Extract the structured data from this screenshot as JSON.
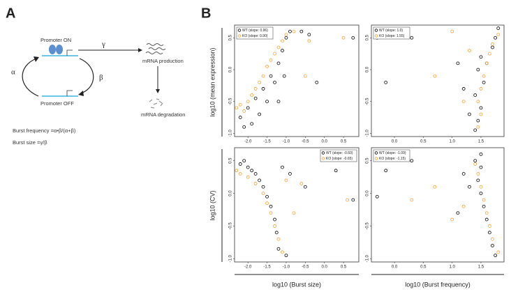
{
  "panels": {
    "a": "A",
    "b": "B"
  },
  "diagram": {
    "promoter_on": "Promoter ON",
    "gamma": "γ",
    "mrna_production": "mRNA production",
    "alpha": "α",
    "beta": "β",
    "mrna_degradation": "mRNA degradation",
    "promoter_off": "Promoter OFF",
    "burst_frequency": "Burst frequency =α•β/(α+β)",
    "burst_size": "Burst size =γ/β"
  },
  "shared_axes": {
    "y_top": "log10 (mean expression)",
    "y_bottom": "log10 (CV)",
    "x_left": "log10 (Burst size)",
    "x_right": "log10 (Burst frequency)"
  },
  "chart_data": [
    {
      "type": "scatter",
      "legend": "topleft",
      "xlim": [
        -2.35,
        0.9
      ],
      "ylim": [
        -1.05,
        0.7
      ],
      "xticks": [
        {
          "value": -2,
          "label": "-2.0"
        },
        -1.5,
        {
          "value": -1,
          "label": "-1.0"
        },
        -0.5,
        {
          "value": 0,
          "label": "0.0"
        },
        0.5
      ],
      "yticks": [
        {
          "value": -1,
          "label": "-1.0"
        },
        -0.5,
        {
          "value": 0,
          "label": "0.0"
        },
        0.5
      ],
      "series": [
        {
          "name": "WT (slope: 0.96)",
          "color": "#000000",
          "x": [
            -2.2,
            -2.1,
            -2.0,
            -1.9,
            -1.8,
            -1.7,
            -1.6,
            -1.5,
            -1.4,
            -1.3,
            -1.2,
            -1.1,
            -1.0,
            -1.05,
            -0.9,
            -0.6,
            -0.4,
            -0.2,
            0.75,
            -1.2
          ],
          "values": [
            -0.75,
            -0.9,
            -0.6,
            -0.85,
            -0.45,
            -0.7,
            -0.3,
            -0.5,
            -0.1,
            -0.2,
            0.1,
            0.3,
            0.5,
            -0.1,
            0.6,
            0.6,
            0.55,
            -0.2,
            0.5,
            -0.5
          ]
        },
        {
          "name": "KO (slope: 0.90)",
          "color": "#f7a030",
          "x": [
            -2.3,
            -2.2,
            -2.1,
            -2.0,
            -1.9,
            -1.8,
            -1.7,
            -1.6,
            -1.5,
            -1.4,
            -1.3,
            -1.2,
            -1.1,
            -1.0,
            -0.8,
            -0.4,
            -0.5,
            0.5
          ],
          "values": [
            -0.6,
            -0.55,
            -0.65,
            -0.5,
            -0.4,
            -0.3,
            -0.2,
            -0.1,
            0.05,
            0.15,
            0.25,
            0.35,
            0.45,
            0.55,
            0.6,
            0.45,
            -0.1,
            0.5
          ]
        }
      ]
    },
    {
      "type": "scatter",
      "legend": "topleft",
      "xlim": [
        -0.4,
        1.9
      ],
      "ylim": [
        -1.05,
        0.7
      ],
      "xticks": [
        {
          "value": 0,
          "label": "0.0"
        },
        0.5,
        {
          "value": 1,
          "label": "1.0"
        },
        1.5
      ],
      "yticks": [
        {
          "value": -1,
          "label": "-1.0"
        },
        -0.5,
        {
          "value": 0,
          "label": "0.0"
        },
        0.5
      ],
      "series": [
        {
          "name": "WT (slope: 1.0)",
          "color": "#000000",
          "x": [
            1.4,
            1.45,
            1.5,
            1.4,
            1.55,
            1.45,
            1.6,
            1.5,
            1.7,
            1.75,
            1.8,
            1.2,
            1.1,
            -0.3,
            -0.15,
            0.3,
            1.3
          ],
          "values": [
            -0.95,
            -0.8,
            -0.6,
            -0.4,
            -0.2,
            0,
            0.1,
            0.2,
            0.35,
            0.5,
            0.65,
            -0.3,
            0.1,
            0.5,
            -0.2,
            0.5,
            -0.7
          ]
        },
        {
          "name": "KO (slope: 1.55)",
          "color": "#f7a030",
          "x": [
            1.45,
            1.5,
            1.45,
            1.5,
            1.55,
            1.6,
            1.65,
            1.7,
            1.8,
            0.7,
            1.0,
            1.3,
            1.2
          ],
          "values": [
            -0.9,
            -0.7,
            -0.5,
            -0.3,
            -0.1,
            0.1,
            0.25,
            0.4,
            0.55,
            -0.1,
            0.6,
            0.3,
            -0.5
          ]
        }
      ]
    },
    {
      "type": "scatter",
      "legend": "topright",
      "xlim": [
        -2.35,
        0.9
      ],
      "ylim": [
        -1.05,
        0.7
      ],
      "xticks": [
        {
          "value": -2,
          "label": "-2.0"
        },
        -1.5,
        {
          "value": -1,
          "label": "-1.0"
        },
        -0.5,
        {
          "value": 0,
          "label": "0.0"
        },
        0.5
      ],
      "yticks": [
        {
          "value": -1,
          "label": "-1.0"
        },
        -0.5,
        {
          "value": 0,
          "label": "0.0"
        },
        0.5
      ],
      "series": [
        {
          "name": "WT (slope: -0.60)",
          "color": "#000000",
          "x": [
            -2.2,
            -2.1,
            -2.0,
            -1.9,
            -1.8,
            -1.7,
            -1.6,
            -1.5,
            -1.4,
            -1.3,
            -1.25,
            -1.2,
            -1.0,
            -0.9,
            -0.5,
            0.3,
            0.75,
            -1.1
          ],
          "values": [
            0.45,
            0.5,
            0.4,
            0.35,
            0.3,
            0.2,
            0.1,
            -0.05,
            -0.2,
            -0.4,
            -0.6,
            -0.85,
            -0.95,
            0.3,
            0.1,
            0.35,
            -0.1,
            0.4
          ]
        },
        {
          "name": "KO (slope: -0.65)",
          "color": "#f7a030",
          "x": [
            -2.3,
            -2.2,
            -2.0,
            -1.8,
            -1.6,
            -1.5,
            -1.4,
            -1.3,
            -1.2,
            -1.1,
            -0.8,
            -0.6,
            0.6,
            -1.0
          ],
          "values": [
            0.35,
            0.3,
            0.25,
            0.15,
            0,
            -0.15,
            -0.3,
            -0.5,
            -0.7,
            -0.9,
            -0.3,
            0.15,
            -0.1,
            0.2
          ]
        }
      ]
    },
    {
      "type": "scatter",
      "legend": "topleft",
      "xlim": [
        -0.4,
        1.9
      ],
      "ylim": [
        -1.05,
        0.7
      ],
      "xticks": [
        {
          "value": 0,
          "label": "0.0"
        },
        0.5,
        {
          "value": 1,
          "label": "1.0"
        },
        1.5
      ],
      "yticks": [
        {
          "value": -1,
          "label": "-1.0"
        },
        -0.5,
        {
          "value": 0,
          "label": "0.0"
        },
        0.5
      ],
      "series": [
        {
          "name": "WT (slope: -1.09)",
          "color": "#000000",
          "x": [
            1.5,
            1.4,
            1.5,
            1.45,
            1.5,
            1.55,
            1.6,
            1.65,
            1.7,
            1.75,
            1.3,
            1.1,
            -0.3,
            -0.15,
            0.3,
            1.2
          ],
          "values": [
            0.6,
            0.5,
            0.4,
            0.2,
            0,
            -0.2,
            -0.4,
            -0.6,
            -0.8,
            -0.95,
            0.1,
            -0.3,
            -0.05,
            0.35,
            0.5,
            0.3
          ]
        },
        {
          "name": "KO (slope: -1.15)",
          "color": "#f7a030",
          "x": [
            1.4,
            1.45,
            1.5,
            1.55,
            1.6,
            1.65,
            1.7,
            1.8,
            1.2,
            1.0,
            0.3,
            0.7
          ],
          "values": [
            0.45,
            0.3,
            0.1,
            -0.1,
            -0.3,
            -0.5,
            -0.7,
            -0.9,
            -0.2,
            -0.4,
            -0.1,
            0.1
          ]
        }
      ]
    }
  ]
}
